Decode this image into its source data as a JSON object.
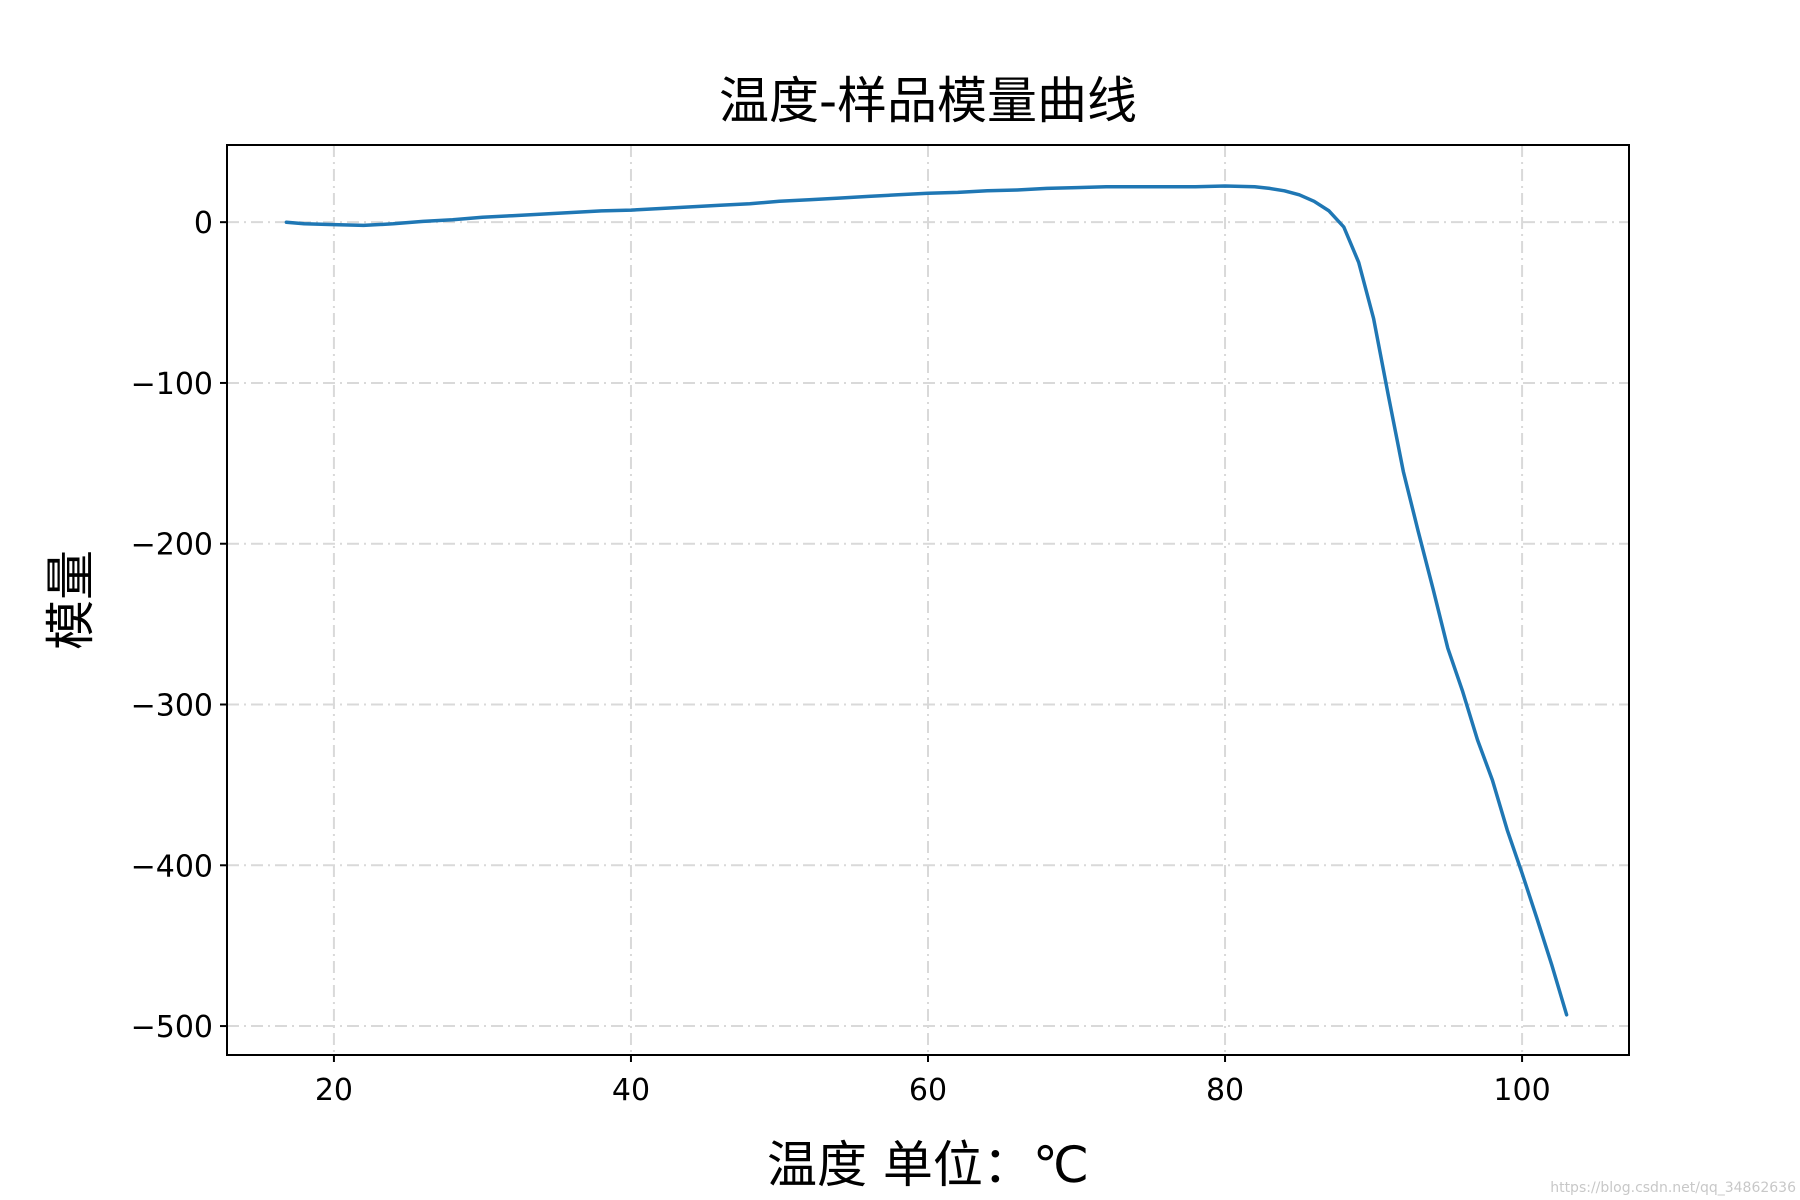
{
  "chart_data": {
    "type": "line",
    "title": "温度-样品模量曲线",
    "xlabel": "温度 单位：℃",
    "ylabel": "模量",
    "xlim": [
      12.8,
      107.2
    ],
    "ylim": [
      -518,
      48
    ],
    "x_ticks": [
      20,
      40,
      60,
      80,
      100
    ],
    "y_ticks": [
      0,
      -100,
      -200,
      -300,
      -400,
      -500
    ],
    "x_tick_labels": [
      "20",
      "40",
      "60",
      "80",
      "100"
    ],
    "y_tick_labels": [
      "0",
      "−100",
      "−200",
      "−300",
      "−400",
      "−500"
    ],
    "grid": true,
    "grid_style": "dash-dot",
    "line_color": "#1f77b4",
    "series": [
      {
        "x": [
          16.8,
          18,
          20,
          22,
          24,
          26,
          28,
          30,
          32,
          34,
          36,
          38,
          40,
          42,
          44,
          46,
          48,
          50,
          52,
          54,
          56,
          58,
          60,
          62,
          64,
          66,
          68,
          70,
          72,
          74,
          76,
          78,
          80,
          82,
          83,
          84,
          85,
          86,
          87,
          88,
          89,
          90,
          91,
          92,
          93,
          94,
          95,
          96,
          97,
          98,
          99,
          100,
          101,
          102,
          103
        ],
        "y": [
          0,
          -1,
          -1.5,
          -2,
          -1,
          0.5,
          1.5,
          3,
          4,
          5,
          6,
          7,
          7.5,
          8.5,
          9.5,
          10.5,
          11.5,
          13,
          14,
          15,
          16,
          17,
          18,
          18.5,
          19.5,
          20,
          21,
          21.5,
          22,
          22,
          22,
          22,
          22.5,
          22,
          21,
          19.5,
          17,
          13,
          7,
          -3,
          -25,
          -60,
          -108,
          -155,
          -192,
          -228,
          -265,
          -292,
          -322,
          -347,
          -378,
          -405,
          -433,
          -462,
          -493
        ]
      }
    ],
    "watermark": "https://blog.csdn.net/qq_34862636"
  }
}
